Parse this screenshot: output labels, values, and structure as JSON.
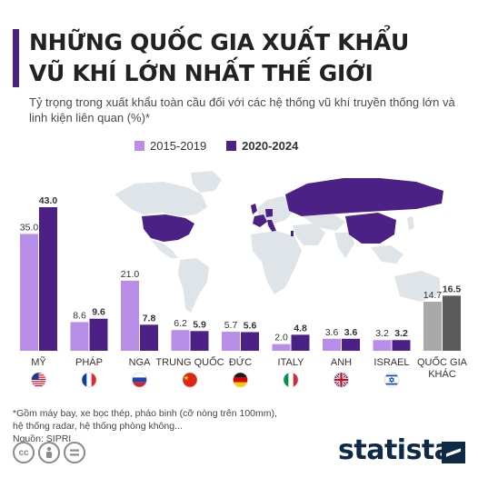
{
  "header": {
    "title_line1": "NHỮNG QUỐC GIA XUẤT KHẨU",
    "title_line2": "VŨ KHÍ LỚN NHẤT THẾ GIỚI",
    "subtitle": "Tỷ trọng trong xuất khẩu toàn cầu đối với các hệ thống vũ khí truyền thống lớn và linh kiện liên quan (%)*"
  },
  "colors": {
    "light": "#b98ee8",
    "dark": "#4b2186",
    "other_light": "#a9a9a9",
    "other_dark": "#5b5b5b",
    "map_land": "#dfe4e8",
    "map_highlight": "#4b2186"
  },
  "chart_data": {
    "type": "bar",
    "title": "NHỮNG QUỐC GIA XUẤT KHẨU VŨ KHÍ LỚN NHẤT THẾ GIỚI",
    "ylabel": "",
    "xlabel": "",
    "ylim": [
      0,
      43
    ],
    "legend_position": "top",
    "categories": [
      "MỸ",
      "PHÁP",
      "NGA",
      "TRUNG QUỐC",
      "ĐỨC",
      "ITALY",
      "ANH",
      "ISRAEL",
      "QUỐC GIA KHÁC"
    ],
    "category_lines": [
      [
        "MỸ"
      ],
      [
        "PHÁP"
      ],
      [
        "NGA"
      ],
      [
        "TRUNG QUỐC"
      ],
      [
        "ĐỨC"
      ],
      [
        "ITALY"
      ],
      [
        "ANH"
      ],
      [
        "ISRAEL"
      ],
      [
        "QUỐC GIA",
        "KHÁC"
      ]
    ],
    "series": [
      {
        "name": "2015-2019",
        "values": [
          35.0,
          8.6,
          21.0,
          6.2,
          5.7,
          2.0,
          3.6,
          3.2,
          14.7
        ],
        "labels": [
          "35.0",
          "8.6",
          "21.0",
          "6.2",
          "5.7",
          "2.0",
          "3.6",
          "3.2",
          "14.7"
        ]
      },
      {
        "name": "2020-2024",
        "values": [
          43.0,
          9.6,
          7.8,
          5.9,
          5.6,
          4.8,
          3.6,
          3.2,
          16.5
        ],
        "labels": [
          "43.0",
          "9.6",
          "7.8",
          "5.9",
          "5.6",
          "4.8",
          "3.6",
          "3.2",
          "16.5"
        ]
      }
    ],
    "flags": [
      "us-flag-icon",
      "france-flag-icon",
      "russia-flag-icon",
      "china-flag-icon",
      "germany-flag-icon",
      "italy-flag-icon",
      "uk-flag-icon",
      "israel-flag-icon",
      ""
    ]
  },
  "footer": {
    "footnote_line1": "*Gồm máy bay, xe bọc thép, pháo binh (cỡ nòng trên 100mm),",
    "footnote_line2": "hệ thống radar, hệ thống phòng không...",
    "source": "Nguồn: SIPRI",
    "brand": "statista",
    "cc_icons": [
      "creative-commons-icon",
      "attribution-icon",
      "no-derivatives-icon"
    ]
  }
}
